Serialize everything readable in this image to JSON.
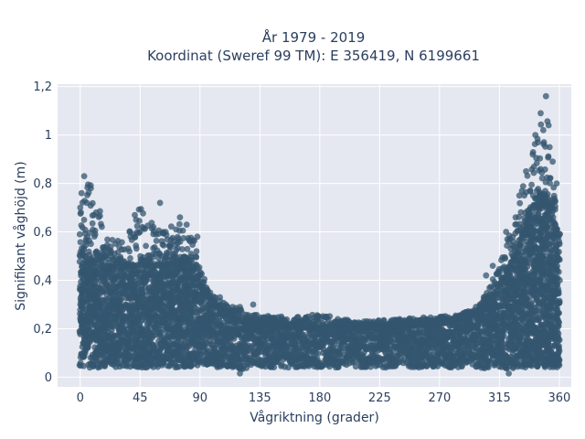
{
  "chart_data": {
    "type": "scatter",
    "title_line1": "År 1979 - 2019",
    "title_line2": "Koordinat (Sweref 99 TM): E 356419, N 6199661",
    "xlabel": "Vågriktning (grader)",
    "ylabel": "Signifikant våghöjd (m)",
    "xlim": [
      -17,
      369
    ],
    "ylim": [
      -0.04,
      1.21
    ],
    "xticks": [
      0,
      45,
      90,
      135,
      180,
      225,
      270,
      315,
      360
    ],
    "xtick_labels": [
      "0",
      "45",
      "90",
      "135",
      "180",
      "225",
      "270",
      "315",
      "360"
    ],
    "yticks": [
      0,
      0.2,
      0.4,
      0.6,
      0.8,
      1.0,
      1.2
    ],
    "ytick_labels": [
      "0",
      "0,2",
      "0,4",
      "0,6",
      "0,8",
      "1",
      "1,2"
    ],
    "grid": true,
    "marker_color": "#34566f",
    "plot_bg": "#e5e8f0",
    "envelope": {
      "x": [
        0,
        5,
        10,
        20,
        30,
        45,
        60,
        75,
        85,
        90,
        100,
        110,
        120,
        130,
        150,
        180,
        210,
        240,
        270,
        285,
        300,
        310,
        320,
        330,
        340,
        345,
        350,
        355,
        360
      ],
      "y_min": [
        0.04,
        0.04,
        0.04,
        0.04,
        0.04,
        0.04,
        0.04,
        0.04,
        0.04,
        0.04,
        0.04,
        0.04,
        0.03,
        0.04,
        0.04,
        0.04,
        0.04,
        0.04,
        0.04,
        0.04,
        0.04,
        0.03,
        0.03,
        0.04,
        0.04,
        0.04,
        0.04,
        0.04,
        0.04
      ],
      "y_core": [
        0.52,
        0.5,
        0.48,
        0.46,
        0.45,
        0.46,
        0.46,
        0.48,
        0.46,
        0.38,
        0.3,
        0.26,
        0.23,
        0.22,
        0.21,
        0.2,
        0.2,
        0.21,
        0.22,
        0.24,
        0.27,
        0.32,
        0.42,
        0.55,
        0.7,
        0.75,
        0.75,
        0.7,
        0.55
      ],
      "y_max": [
        0.7,
        0.83,
        0.78,
        0.58,
        0.56,
        0.72,
        0.62,
        0.66,
        0.58,
        0.45,
        0.34,
        0.3,
        0.28,
        0.26,
        0.25,
        0.26,
        0.23,
        0.24,
        0.25,
        0.26,
        0.3,
        0.4,
        0.55,
        0.75,
        0.95,
        1.09,
        1.16,
        0.9,
        0.6
      ]
    },
    "outliers": [
      {
        "x": 3,
        "y": 0.83
      },
      {
        "x": 8,
        "y": 0.78
      },
      {
        "x": 1,
        "y": 0.76
      },
      {
        "x": 0,
        "y": 0.7
      },
      {
        "x": 5,
        "y": 0.72
      },
      {
        "x": 12,
        "y": 0.68
      },
      {
        "x": 60,
        "y": 0.72
      },
      {
        "x": 42,
        "y": 0.65
      },
      {
        "x": 45,
        "y": 0.6
      },
      {
        "x": 75,
        "y": 0.66
      },
      {
        "x": 80,
        "y": 0.63
      },
      {
        "x": 72,
        "y": 0.61
      },
      {
        "x": 55,
        "y": 0.62
      },
      {
        "x": 88,
        "y": 0.58
      },
      {
        "x": 105,
        "y": 0.33
      },
      {
        "x": 120,
        "y": 0.29
      },
      {
        "x": 130,
        "y": 0.3
      },
      {
        "x": 185,
        "y": 0.25
      },
      {
        "x": 240,
        "y": 0.24
      },
      {
        "x": 305,
        "y": 0.42
      },
      {
        "x": 310,
        "y": 0.46
      },
      {
        "x": 320,
        "y": 0.6
      },
      {
        "x": 330,
        "y": 0.75
      },
      {
        "x": 335,
        "y": 0.85
      },
      {
        "x": 340,
        "y": 0.92
      },
      {
        "x": 342,
        "y": 1.0
      },
      {
        "x": 344,
        "y": 0.97
      },
      {
        "x": 346,
        "y": 1.09
      },
      {
        "x": 348,
        "y": 1.02
      },
      {
        "x": 350,
        "y": 1.16
      },
      {
        "x": 352,
        "y": 1.04
      },
      {
        "x": 355,
        "y": 0.89
      },
      {
        "x": 358,
        "y": 0.8
      },
      {
        "x": 322,
        "y": 0.015
      },
      {
        "x": 120,
        "y": 0.015
      }
    ]
  }
}
